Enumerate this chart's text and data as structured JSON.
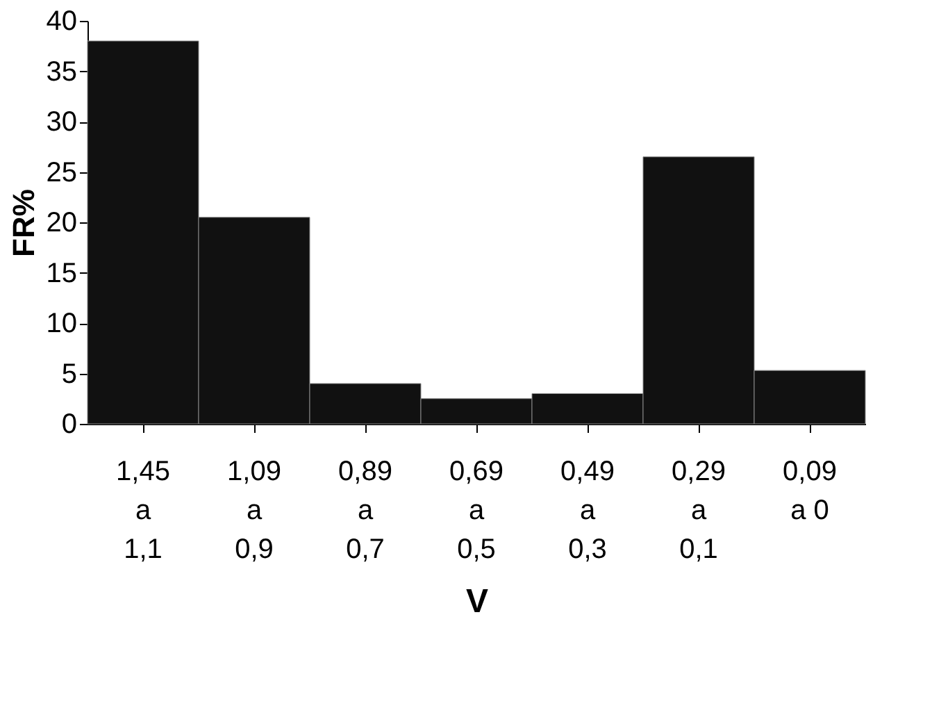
{
  "chart_data": {
    "type": "bar",
    "xlabel": "V",
    "ylabel": "FR%",
    "categories": [
      "1,45\na\n1,1",
      "1,09\na\n0,9",
      "0,89\na\n0,7",
      "0,69\na\n0,5",
      "0,49\na\n0,3",
      "0,29\na\n0,1",
      "0,09\na 0"
    ],
    "values": [
      38,
      20.5,
      4,
      2.5,
      3,
      26.5,
      5.3
    ],
    "color": "#111111",
    "ylim": [
      0,
      40
    ],
    "yticks": [
      0,
      5,
      10,
      15,
      20,
      25,
      30,
      35,
      40
    ],
    "grid": false
  }
}
